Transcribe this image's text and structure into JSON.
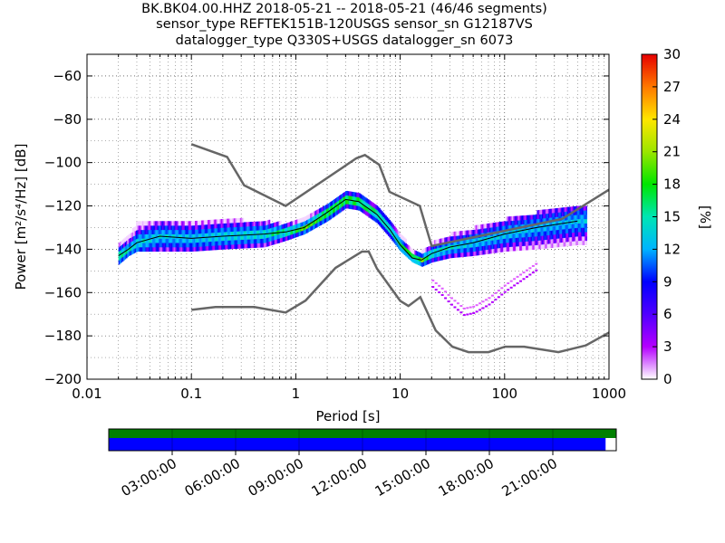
{
  "title": {
    "line1": "BK.BK04.00.HHZ   2018-05-21 -- 2018-05-21  (46/46 segments)",
    "line2": "sensor_type REFTEK151B-120USGS sensor_sn G12187VS",
    "line3": "datalogger_type Q330S+USGS datalogger_sn 6073"
  },
  "chart_data": {
    "type": "heatmap",
    "xlabel": "Period [s]",
    "ylabel": "Power [m²/s⁴/Hz] [dB]",
    "xscale": "log",
    "xlim": [
      0.01,
      1000
    ],
    "ylim": [
      -200,
      -50
    ],
    "x_ticks": [
      0.01,
      0.1,
      1,
      10,
      100,
      1000
    ],
    "x_tick_labels": [
      "0.01",
      "0.1",
      "1",
      "10",
      "100",
      "1000"
    ],
    "y_ticks": [
      -200,
      -180,
      -160,
      -140,
      -120,
      -100,
      -80,
      -60
    ],
    "y_tick_labels": [
      "−200",
      "−180",
      "−160",
      "−140",
      "−120",
      "−100",
      "−80",
      "−60"
    ],
    "grid": true,
    "colorbar": {
      "label": "[%]",
      "min": 0,
      "max": 30,
      "ticks": [
        0,
        3,
        6,
        9,
        12,
        15,
        18,
        21,
        24,
        27,
        30
      ]
    },
    "new_high_noise_model": {
      "period": [
        0.1,
        0.22,
        0.32,
        0.8,
        3.8,
        4.6,
        6.3,
        7.9,
        15.4,
        20,
        354.8,
        1000
      ],
      "power": [
        -91.5,
        -97.4,
        -110.5,
        -120,
        -98,
        -96.5,
        -101,
        -113.5,
        -120,
        -138.5,
        -126,
        -112.5
      ]
    },
    "new_low_noise_model": {
      "period": [
        0.1,
        0.17,
        0.4,
        0.8,
        1.24,
        2.4,
        4.3,
        5,
        6,
        10,
        12,
        15.6,
        21.9,
        31.6,
        45,
        70,
        101,
        154,
        328,
        600,
        1000
      ],
      "power": [
        -168,
        -166.7,
        -166.7,
        -169.2,
        -163.7,
        -148.6,
        -141.1,
        -141.1,
        -149,
        -163.8,
        -166.2,
        -162.1,
        -177.5,
        -185,
        -187.5,
        -187.5,
        -185,
        -185,
        -187.5,
        -184.4,
        -178.5
      ]
    },
    "median_curve": {
      "period": [
        0.02,
        0.025,
        0.03,
        0.05,
        0.1,
        0.2,
        0.5,
        0.8,
        1.2,
        2,
        3,
        4,
        6,
        8,
        10,
        13,
        16,
        20,
        30,
        50,
        100,
        200,
        500
      ],
      "power": [
        -143,
        -140,
        -137,
        -134,
        -135,
        -134,
        -133,
        -132,
        -130,
        -123,
        -117,
        -118,
        -124,
        -131,
        -138,
        -144,
        -145,
        -142,
        -139,
        -137,
        -133,
        -130,
        -127
      ]
    },
    "density_band": [
      {
        "period": 0.02,
        "lo": -147,
        "hi": -138,
        "peak": 18
      },
      {
        "period": 0.025,
        "lo": -143,
        "hi": -135,
        "peak": 15
      },
      {
        "period": 0.03,
        "lo": -141,
        "hi": -128,
        "peak": 14
      },
      {
        "period": 0.05,
        "lo": -141,
        "hi": -127,
        "peak": 13
      },
      {
        "period": 0.1,
        "lo": -141,
        "hi": -128,
        "peak": 13
      },
      {
        "period": 0.2,
        "lo": -140,
        "hi": -127,
        "peak": 14
      },
      {
        "period": 0.5,
        "lo": -139,
        "hi": -128,
        "peak": 15
      },
      {
        "period": 0.8,
        "lo": -136,
        "hi": -129,
        "peak": 18
      },
      {
        "period": 1.2,
        "lo": -133,
        "hi": -127,
        "peak": 20
      },
      {
        "period": 2,
        "lo": -127,
        "hi": -119,
        "peak": 21
      },
      {
        "period": 3,
        "lo": -121,
        "hi": -114,
        "peak": 22
      },
      {
        "period": 4,
        "lo": -122,
        "hi": -115,
        "peak": 21
      },
      {
        "period": 6,
        "lo": -128,
        "hi": -121,
        "peak": 19
      },
      {
        "period": 8,
        "lo": -135,
        "hi": -128,
        "peak": 18
      },
      {
        "period": 10,
        "lo": -141,
        "hi": -134,
        "peak": 18
      },
      {
        "period": 13,
        "lo": -146,
        "hi": -141,
        "peak": 22
      },
      {
        "period": 16,
        "lo": -148,
        "hi": -142,
        "peak": 20
      },
      {
        "period": 20,
        "lo": -146,
        "hi": -138,
        "peak": 16
      },
      {
        "period": 30,
        "lo": -144,
        "hi": -134,
        "peak": 14
      },
      {
        "period": 50,
        "lo": -143,
        "hi": -131,
        "peak": 13
      },
      {
        "period": 100,
        "lo": -141,
        "hi": -127,
        "peak": 13
      },
      {
        "period": 200,
        "lo": -140,
        "hi": -124,
        "peak": 12
      },
      {
        "period": 500,
        "lo": -138,
        "hi": -121,
        "peak": 12
      }
    ],
    "outlier_tail": {
      "period": [
        20,
        25,
        30,
        40,
        50,
        70,
        100,
        200
      ],
      "power": [
        -158,
        -162,
        -166,
        -171,
        -170,
        -166,
        -160,
        -150
      ]
    },
    "timeline": {
      "labels": [
        "03:00:00",
        "06:00:00",
        "09:00:00",
        "12:00:00",
        "15:00:00",
        "18:00:00",
        "21:00:00"
      ],
      "data_coverage": 1.0,
      "psd_coverage": 0.979,
      "data_color": "#008000",
      "psd_color": "#0000ff"
    }
  }
}
